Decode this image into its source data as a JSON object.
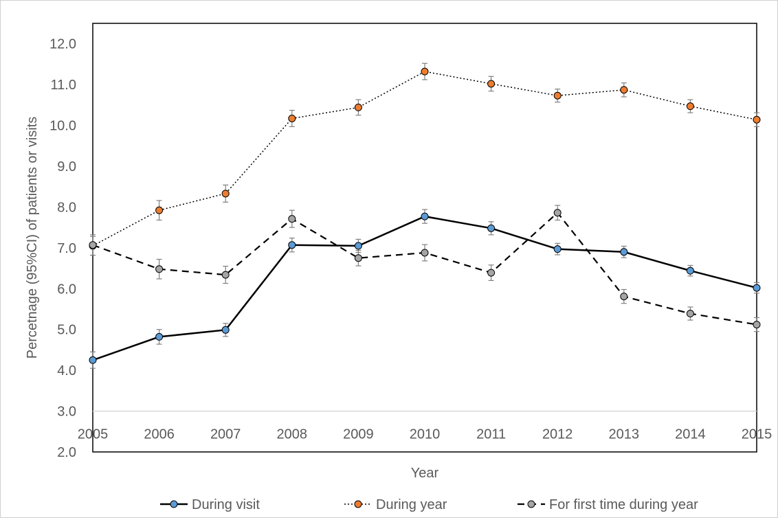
{
  "chart_data": {
    "type": "line",
    "title": "",
    "xlabel": "Year",
    "ylabel": "Percetnage (95%CI) of patients or visits",
    "categories": [
      "2005",
      "2006",
      "2007",
      "2008",
      "2009",
      "2010",
      "2011",
      "2012",
      "2013",
      "2014",
      "2015"
    ],
    "yticks": [
      "2.0",
      "3.0",
      "4.0",
      "5.0",
      "6.0",
      "7.0",
      "8.0",
      "9.0",
      "10.0",
      "11.0",
      "12.0"
    ],
    "ylim": [
      2.0,
      12.5
    ],
    "x_axis_crosses_at": 3.0,
    "grid": false,
    "legend_position": "bottom",
    "error_bars": true,
    "series": [
      {
        "name": "During visit",
        "line_style": "solid",
        "line_color": "#000000",
        "marker_color": "#5b9bd5",
        "values": [
          4.25,
          4.82,
          4.99,
          7.07,
          7.05,
          7.77,
          7.48,
          6.97,
          6.9,
          6.44,
          6.02
        ],
        "ci_low": [
          4.05,
          4.64,
          4.83,
          6.9,
          6.89,
          7.6,
          7.32,
          6.83,
          6.76,
          6.31,
          5.89
        ],
        "ci_high": [
          4.45,
          5.0,
          5.15,
          7.24,
          7.21,
          7.94,
          7.64,
          7.11,
          7.04,
          6.57,
          6.15
        ]
      },
      {
        "name": "During year",
        "line_style": "dotted",
        "line_color": "#000000",
        "marker_color": "#ed7d31",
        "values": [
          7.05,
          7.92,
          8.33,
          10.17,
          10.44,
          11.32,
          11.02,
          10.73,
          10.87,
          10.47,
          10.14
        ],
        "ci_low": [
          6.82,
          7.68,
          8.12,
          9.97,
          10.25,
          11.12,
          10.84,
          10.57,
          10.7,
          10.31,
          9.97
        ],
        "ci_high": [
          7.28,
          8.16,
          8.54,
          10.37,
          10.63,
          11.52,
          11.2,
          10.89,
          11.04,
          10.63,
          10.31
        ]
      },
      {
        "name": "For first time during year",
        "line_style": "dashed",
        "line_color": "#000000",
        "marker_color": "#a5a5a5",
        "values": [
          7.07,
          6.48,
          6.34,
          7.71,
          6.75,
          6.88,
          6.39,
          7.86,
          5.81,
          5.39,
          5.12
        ],
        "ci_low": [
          6.82,
          6.24,
          6.13,
          7.5,
          6.56,
          6.68,
          6.2,
          7.68,
          5.64,
          5.23,
          4.95
        ],
        "ci_high": [
          7.32,
          6.72,
          6.55,
          7.92,
          6.94,
          7.08,
          6.58,
          8.04,
          5.98,
          5.55,
          5.29
        ]
      }
    ]
  }
}
